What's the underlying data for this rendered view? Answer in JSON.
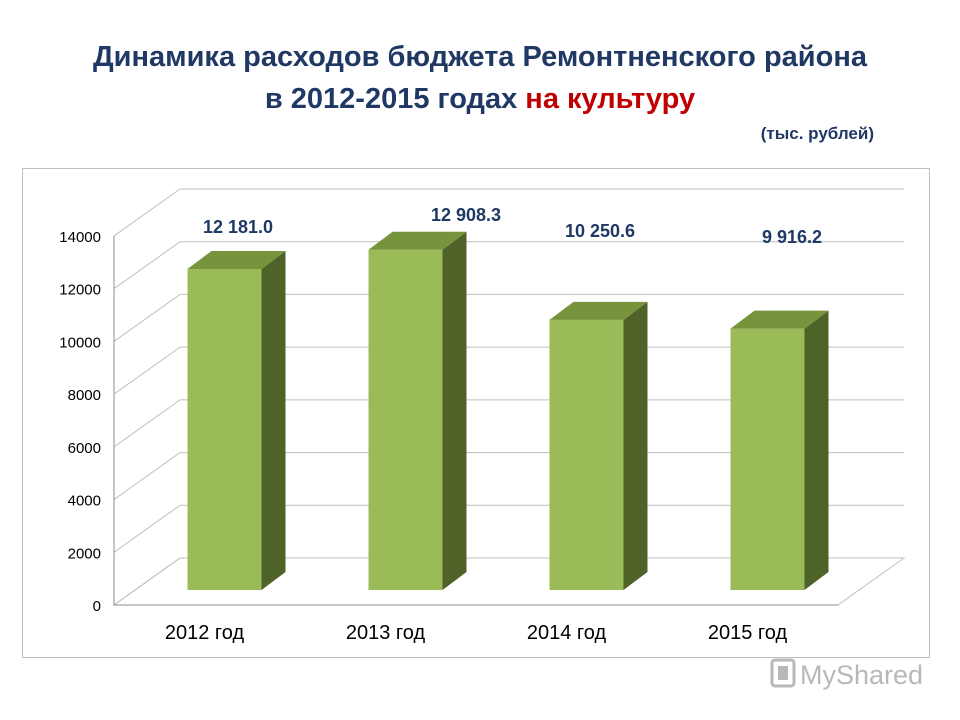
{
  "header": {
    "title_line1": "Динамика расходов бюджета Ремонтненского района",
    "title_line2_prefix": "в 2012-2015 годах ",
    "title_line2_accent": "на культуру",
    "units": "(тыс. рублей)"
  },
  "colors": {
    "title": "#1f3864",
    "accent": "#c00000",
    "bar_front": "#9bbb59",
    "bar_side": "#4f6228",
    "bar_top": "#77933c",
    "label": "#1f3864"
  },
  "watermark": {
    "text": "MyShared"
  },
  "chart_data": {
    "type": "bar",
    "title": "",
    "xlabel": "",
    "ylabel": "",
    "categories": [
      "2012 год",
      "2013 год",
      "2014 год",
      "2015 год"
    ],
    "values": [
      12181.0,
      12908.3,
      10250.6,
      9916.2
    ],
    "data_labels": [
      "12 181.0",
      "12 908.3",
      "10 250.6",
      "9 916.2"
    ],
    "ylim": [
      0,
      14000
    ],
    "yticks": [
      0,
      2000,
      4000,
      6000,
      8000,
      10000,
      12000,
      14000
    ],
    "grid": true,
    "legend": "none",
    "style": "3d-column"
  }
}
